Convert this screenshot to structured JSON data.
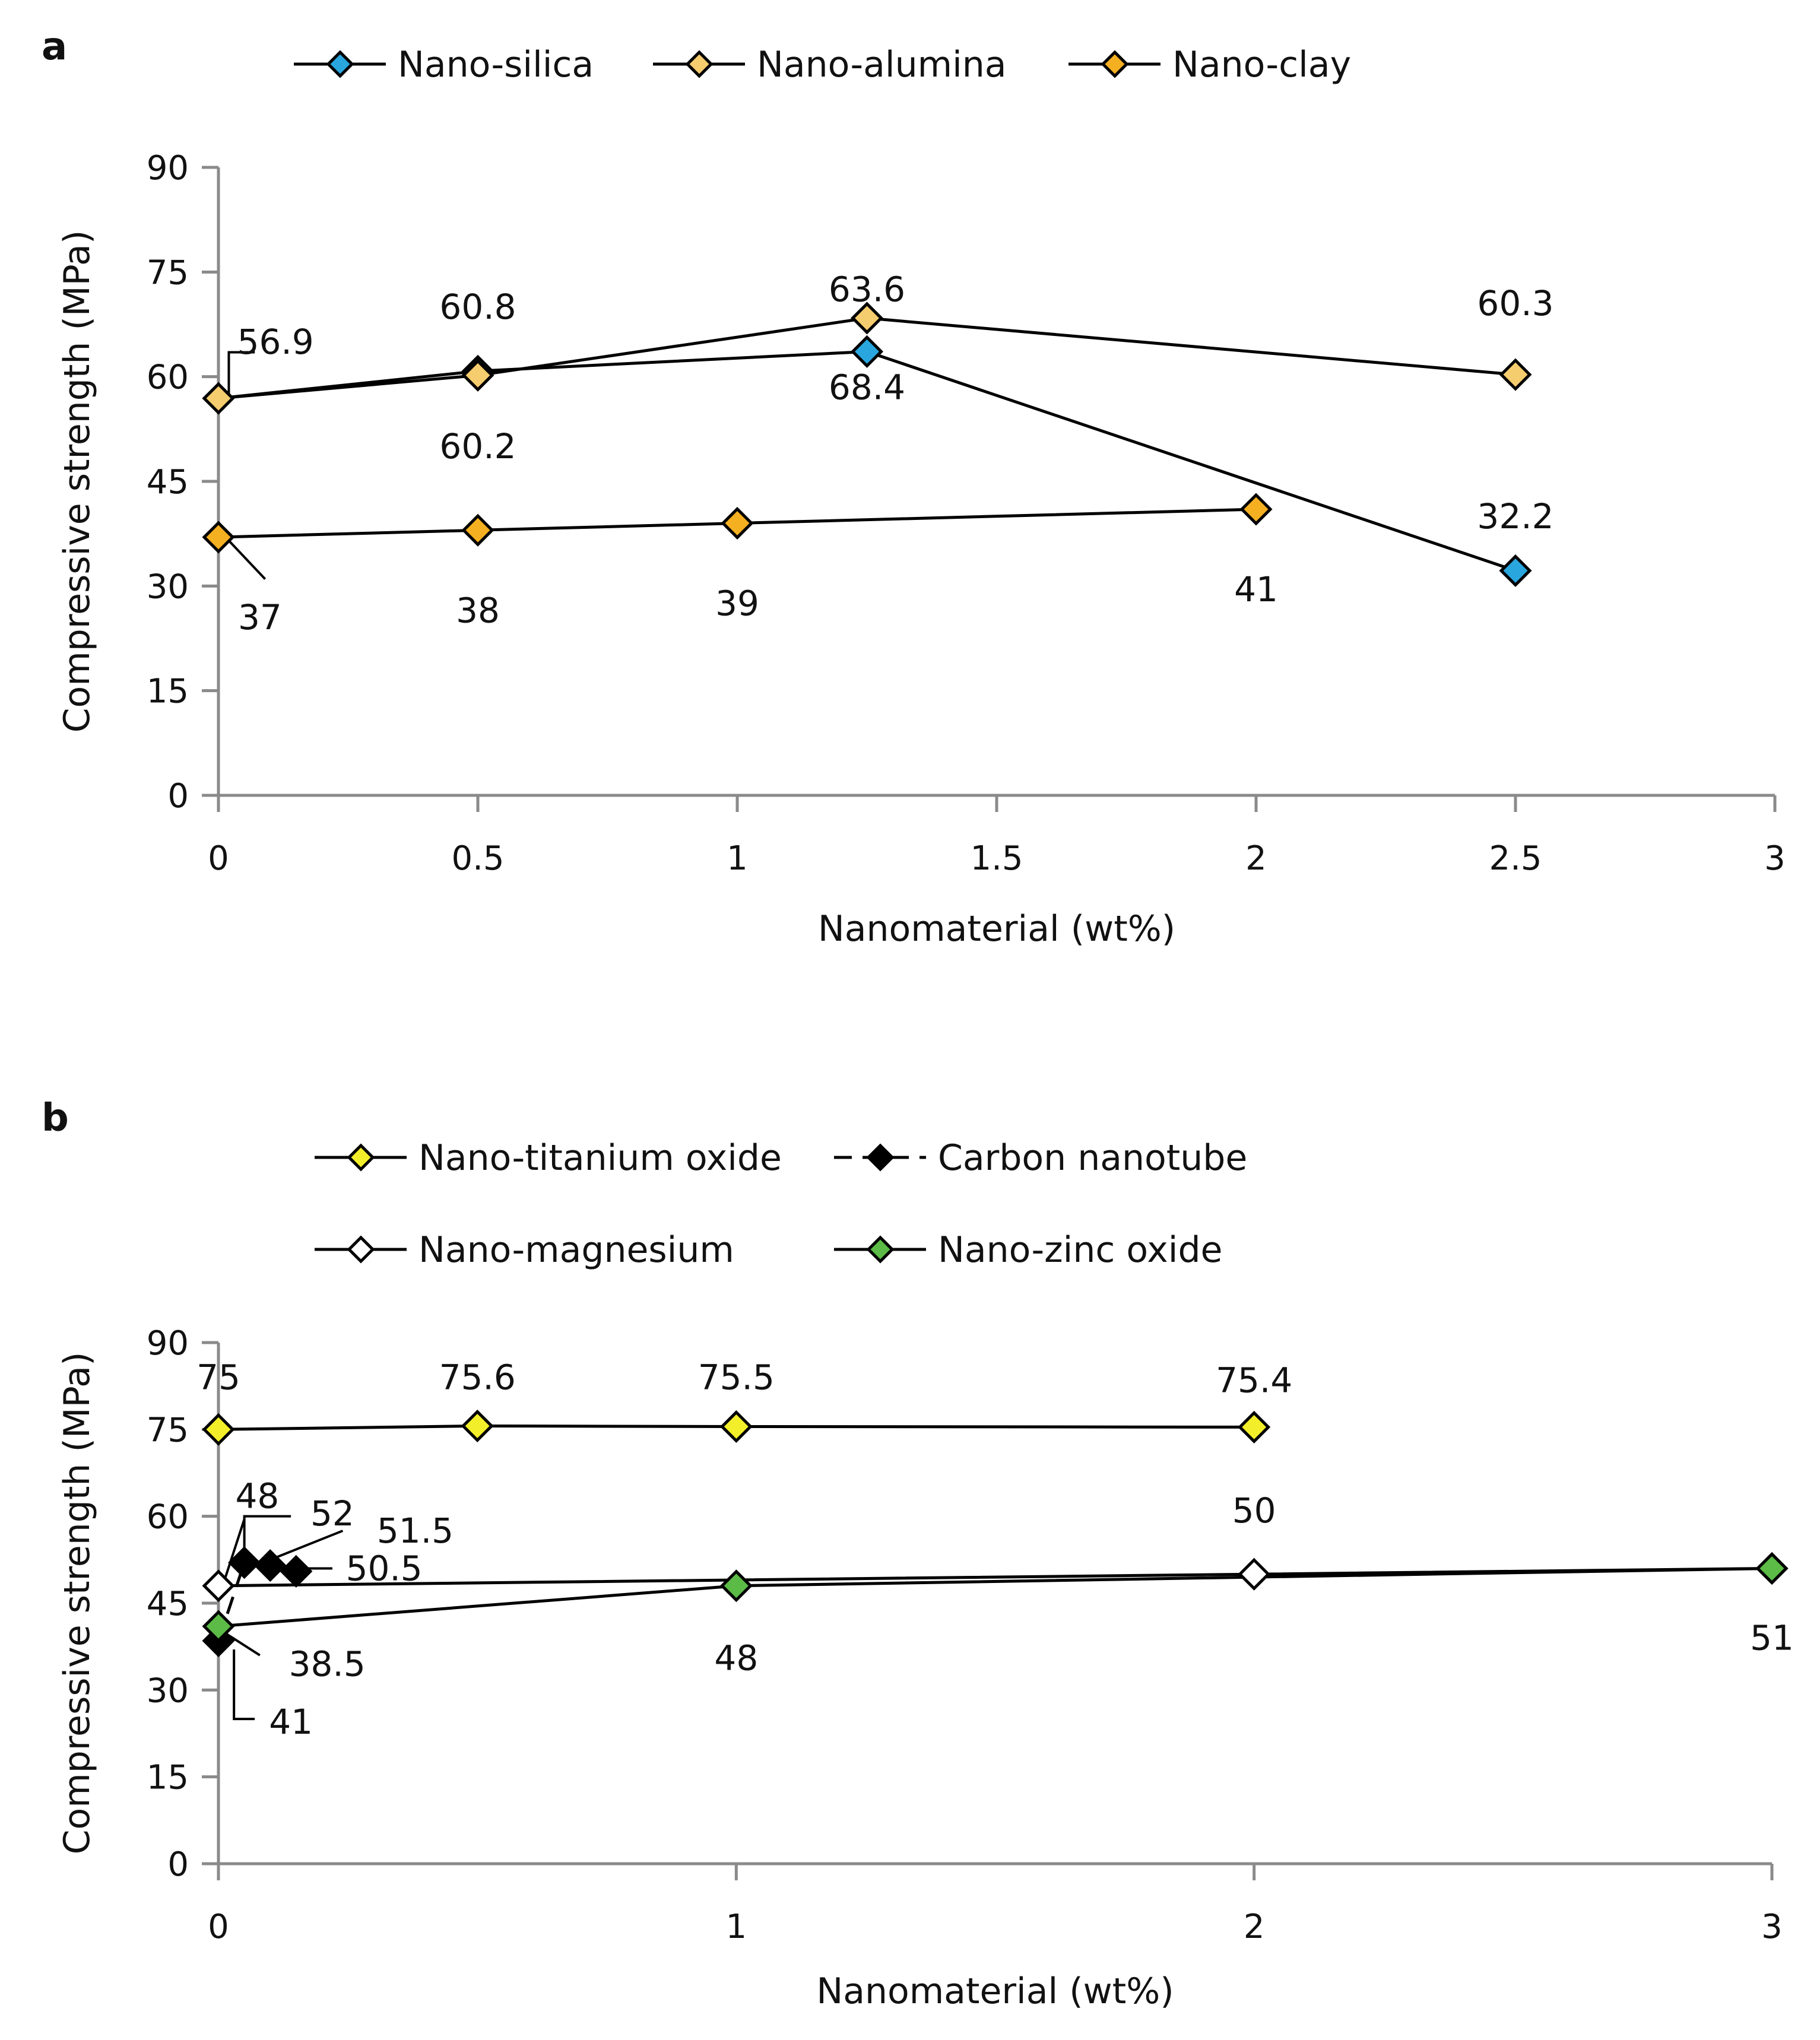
{
  "chart_data": [
    {
      "type": "line",
      "panel_label": "a",
      "xlabel": "Nanomaterial (wt%)",
      "ylabel": "Compressive strength (MPa)",
      "xlim": [
        0,
        3
      ],
      "ylim": [
        0,
        90
      ],
      "x_ticks": [
        "0",
        "0.5",
        "1",
        "1.5",
        "2",
        "2.5",
        "3"
      ],
      "y_ticks": [
        "0",
        "15",
        "30",
        "45",
        "60",
        "75",
        "90"
      ],
      "legend_position": "top",
      "series": [
        {
          "name": "Nano-silica",
          "color": "#29a6de",
          "dash": false,
          "x": [
            0,
            0.5,
            1.25,
            2.5
          ],
          "values": [
            56.9,
            60.8,
            63.6,
            32.2
          ]
        },
        {
          "name": "Nano-alumina",
          "color": "#f5cc6e",
          "dash": false,
          "x": [
            0,
            0.5,
            1.25,
            2.5
          ],
          "values": [
            56.9,
            60.2,
            68.4,
            60.3
          ]
        },
        {
          "name": "Nano-clay",
          "color": "#f5b021",
          "dash": false,
          "x": [
            0,
            0.5,
            1,
            2
          ],
          "values": [
            37,
            38,
            39,
            41
          ]
        }
      ],
      "annotations": [
        {
          "text": "56.9",
          "x": 0.11,
          "y": 65,
          "line": [
            [
              0.02,
              57
            ],
            [
              0.02,
              63.5
            ],
            [
              0.07,
              63.5
            ]
          ]
        },
        {
          "text": "60.8",
          "x": 0.5,
          "y": 70
        },
        {
          "text": "63.6",
          "x": 1.25,
          "y": 72.5
        },
        {
          "text": "60.3",
          "x": 2.5,
          "y": 70.5
        },
        {
          "text": "68.4",
          "x": 1.25,
          "y": 58.5
        },
        {
          "text": "60.2",
          "x": 0.5,
          "y": 50
        },
        {
          "text": "32.2",
          "x": 2.5,
          "y": 40
        },
        {
          "text": "37",
          "x": 0.08,
          "y": 25.5,
          "line": [
            [
              0.02,
              36.5
            ],
            [
              0.09,
              31
            ]
          ]
        },
        {
          "text": "38",
          "x": 0.5,
          "y": 26.5
        },
        {
          "text": "39",
          "x": 1,
          "y": 27.5
        },
        {
          "text": "41",
          "x": 2,
          "y": 29.5
        }
      ]
    },
    {
      "type": "line",
      "panel_label": "b",
      "xlabel": "Nanomaterial (wt%)",
      "ylabel": "Compressive strength (MPa)",
      "xlim": [
        0,
        3
      ],
      "ylim": [
        0,
        90
      ],
      "x_ticks": [
        "0",
        "1",
        "2",
        "3"
      ],
      "y_ticks": [
        "0",
        "15",
        "30",
        "45",
        "60",
        "75",
        "90"
      ],
      "legend_position": "top",
      "series": [
        {
          "name": "Nano-titanium oxide",
          "color": "#f2ef2a",
          "dash": false,
          "x": [
            0,
            0.5,
            1,
            2
          ],
          "values": [
            75,
            75.6,
            75.5,
            75.4
          ]
        },
        {
          "name": "Carbon nanotube",
          "color": "#000000",
          "dash": true,
          "x": [
            0,
            0.05,
            0.1,
            0.15
          ],
          "values": [
            38.5,
            52,
            51.5,
            50.5
          ]
        },
        {
          "name": "Nano-magnesium",
          "color": "#ffffff",
          "dash": false,
          "x": [
            0,
            2,
            3
          ],
          "values": [
            48,
            50,
            51
          ]
        },
        {
          "name": "Nano-zinc oxide",
          "color": "#5bbb46",
          "dash": false,
          "x": [
            0,
            1,
            3
          ],
          "values": [
            41,
            48,
            51
          ]
        }
      ],
      "annotations": [
        {
          "text": "75",
          "x": 0,
          "y": 84
        },
        {
          "text": "75.6",
          "x": 0.5,
          "y": 84
        },
        {
          "text": "75.5",
          "x": 1,
          "y": 84
        },
        {
          "text": "75.4",
          "x": 2,
          "y": 83.5
        },
        {
          "text": "50",
          "x": 2,
          "y": 61
        },
        {
          "text": "51",
          "x": 3,
          "y": 39
        },
        {
          "text": "48",
          "x": 1,
          "y": 35.5
        },
        {
          "text": "48",
          "x": 0.075,
          "y": 63.5,
          "line": [
            [
              0.01,
              48.5
            ],
            [
              0.05,
              59.5
            ]
          ]
        },
        {
          "text": "52",
          "x": 0.22,
          "y": 60.5,
          "line": [
            [
              0.05,
              53
            ],
            [
              0.05,
              60
            ],
            [
              0.14,
              60
            ]
          ]
        },
        {
          "text": "51.5",
          "x": 0.38,
          "y": 57.5,
          "line": [
            [
              0.1,
              52.5
            ],
            [
              0.24,
              57.5
            ]
          ]
        },
        {
          "text": "50.5",
          "x": 0.32,
          "y": 51,
          "line": [
            [
              0.16,
              51
            ],
            [
              0.22,
              51
            ]
          ]
        },
        {
          "text": "38.5",
          "x": 0.21,
          "y": 34.5,
          "line": [
            [
              0.01,
              40
            ],
            [
              0.08,
              36
            ]
          ]
        },
        {
          "text": "41",
          "x": 0.14,
          "y": 24.5,
          "line": [
            [
              0.03,
              37
            ],
            [
              0.03,
              25
            ],
            [
              0.07,
              25
            ]
          ]
        }
      ]
    }
  ]
}
